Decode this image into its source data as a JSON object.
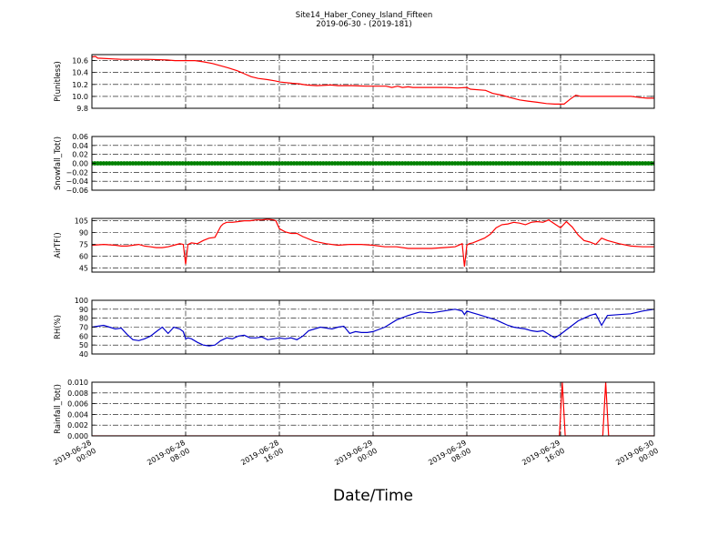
{
  "figure": {
    "title": "Site14_Haber_Coney_Island_Fifteen",
    "subtitle": "2019-06-30 - (2019-181)",
    "xlabel": "Date/Time"
  },
  "chart_data": [
    {
      "type": "line",
      "ylabel": "P(unitless)",
      "ylim": [
        9.8,
        10.7
      ],
      "yticks": [
        9.8,
        10.0,
        10.2,
        10.4,
        10.6
      ],
      "ytick_labels": [
        "9.8",
        "10.0",
        "10.2",
        "10.4",
        "10.6"
      ],
      "grid": true,
      "color": "#ff0000",
      "x": [
        0,
        0.3,
        0.5,
        2.5,
        4.7,
        6.4,
        7.1,
        8.8,
        9.5,
        10.3,
        11.6,
        12.4,
        13.0,
        13.6,
        14.2,
        15.0,
        15.6,
        16.1,
        17.1,
        17.7,
        18.3,
        19.2,
        20.4,
        21.0,
        22.2,
        23.4,
        24.3,
        25.1,
        25.6,
        26.1,
        26.5,
        27.0,
        27.4,
        28.1,
        30.3,
        31.2,
        32.0,
        32.3,
        33.6,
        34.2,
        35.0,
        35.7,
        36.5,
        37.2,
        38.0,
        38.8,
        39.5,
        40.3,
        40.8,
        41.3,
        41.7,
        42.5,
        44.2,
        46.0,
        46.8,
        47.4,
        48.0
      ],
      "y": [
        10.66,
        10.67,
        10.64,
        10.62,
        10.62,
        10.61,
        10.6,
        10.6,
        10.58,
        10.55,
        10.48,
        10.43,
        10.38,
        10.33,
        10.3,
        10.28,
        10.26,
        10.24,
        10.22,
        10.21,
        10.19,
        10.18,
        10.19,
        10.18,
        10.18,
        10.17,
        10.17,
        10.17,
        10.15,
        10.17,
        10.15,
        10.16,
        10.15,
        10.15,
        10.15,
        10.14,
        10.15,
        10.12,
        10.1,
        10.05,
        10.02,
        9.98,
        9.94,
        9.92,
        9.9,
        9.88,
        9.87,
        9.87,
        9.95,
        10.02,
        10.0,
        10.0,
        10.0,
        10.0,
        9.98,
        9.97,
        9.97
      ]
    },
    {
      "type": "scatter",
      "ylabel": "Snowfall_Tot()",
      "ylim": [
        -0.06,
        0.06
      ],
      "yticks": [
        -0.06,
        -0.04,
        -0.02,
        0.0,
        0.02,
        0.04,
        0.06
      ],
      "ytick_labels": [
        "−0.06",
        "−0.04",
        "−0.02",
        "0.00",
        "0.02",
        "0.04",
        "0.06"
      ],
      "grid": true,
      "color": "#008000",
      "x_range": [
        0,
        48
      ],
      "point_interval": 0.25,
      "value": 0.0
    },
    {
      "type": "line",
      "ylabel": "AirTF()",
      "ylim": [
        40,
        108
      ],
      "yticks": [
        45,
        60,
        75,
        90,
        105
      ],
      "ytick_labels": [
        "45",
        "60",
        "75",
        "90",
        "105"
      ],
      "grid": true,
      "color": "#ff0000",
      "x": [
        0,
        1,
        2,
        2.5,
        3,
        3.5,
        4,
        4.5,
        5,
        5.5,
        6,
        6.5,
        7,
        7.5,
        7.8,
        8.0,
        8.2,
        8.5,
        9,
        9.5,
        10,
        10.5,
        11,
        11.2,
        11.5,
        12,
        12.5,
        13,
        13.5,
        14,
        14.5,
        15,
        15.5,
        15.7,
        16,
        16.5,
        17,
        17.5,
        18,
        19,
        20,
        21,
        22,
        23,
        24,
        25,
        26,
        27,
        28,
        29,
        30,
        31,
        31.6,
        31.8,
        32.0,
        32.2,
        32.5,
        33,
        33.5,
        34,
        34.5,
        35,
        35.5,
        36,
        36.5,
        37,
        37.5,
        38,
        38.5,
        39,
        39.5,
        40,
        40.5,
        41,
        41.5,
        42,
        42.5,
        43,
        43.5,
        44,
        45,
        46,
        47,
        48
      ],
      "y": [
        74,
        75,
        74,
        73,
        73,
        74,
        75,
        73,
        72,
        71,
        71,
        72,
        74,
        76,
        75,
        50,
        75,
        77,
        76,
        80,
        83,
        84,
        98,
        101,
        103,
        103,
        104,
        105,
        105,
        106,
        106,
        107,
        106,
        105,
        95,
        91,
        89,
        89,
        85,
        79,
        76,
        74,
        75,
        75,
        74,
        72,
        72,
        70,
        70,
        70,
        71,
        72,
        76,
        47,
        74,
        76,
        77,
        80,
        83,
        88,
        96,
        100,
        101,
        103,
        102,
        100,
        103,
        104,
        103,
        106,
        101,
        96,
        104,
        97,
        87,
        80,
        78,
        75,
        83,
        80,
        76,
        73,
        72,
        72
      ]
    },
    {
      "type": "line",
      "ylabel": "RH(%)",
      "ylim": [
        40,
        100
      ],
      "yticks": [
        40,
        50,
        60,
        70,
        80,
        90,
        100
      ],
      "ytick_labels": [
        "40",
        "50",
        "60",
        "70",
        "80",
        "90",
        "100"
      ],
      "grid": true,
      "color": "#0000cc",
      "x": [
        0,
        0.5,
        1,
        1.5,
        2,
        2.5,
        3,
        3.5,
        4,
        4.5,
        5,
        5.5,
        6,
        6.5,
        7,
        7.5,
        7.8,
        8.0,
        8.2,
        8.5,
        9,
        9.5,
        10,
        10.5,
        11,
        11.5,
        12,
        12.5,
        13,
        13.5,
        14,
        14.5,
        15,
        15.5,
        16,
        16.5,
        17,
        17.5,
        18,
        18.5,
        19,
        19.5,
        20,
        20.5,
        21,
        21.5,
        22,
        22.5,
        23,
        23.5,
        24,
        25,
        26,
        27,
        28,
        29,
        30,
        31,
        31.6,
        31.8,
        32.0,
        32.5,
        33,
        33.5,
        34,
        34.5,
        35,
        35.5,
        36,
        36.5,
        37,
        37.5,
        38,
        38.5,
        39,
        39.5,
        40,
        40.5,
        41,
        41.5,
        42,
        42.5,
        43,
        43.5,
        44,
        45,
        46,
        47,
        48
      ],
      "y": [
        70,
        71,
        72,
        70,
        68,
        69,
        62,
        56,
        55,
        57,
        60,
        65,
        70,
        63,
        70,
        68,
        65,
        57,
        58,
        57,
        53,
        50,
        49,
        50,
        55,
        58,
        57,
        60,
        61,
        58,
        58,
        59,
        56,
        57,
        58,
        57,
        58,
        56,
        60,
        66,
        68,
        70,
        69,
        68,
        70,
        71,
        63,
        65,
        64,
        64,
        65,
        70,
        78,
        83,
        87,
        86,
        88,
        90,
        88,
        84,
        88,
        86,
        84,
        82,
        80,
        78,
        75,
        72,
        70,
        69,
        68,
        66,
        65,
        66,
        62,
        58,
        62,
        67,
        72,
        77,
        80,
        83,
        85,
        72,
        83,
        84,
        85,
        88,
        90
      ]
    },
    {
      "type": "line",
      "ylabel": "Rainfall_Tot()",
      "ylim": [
        0.0,
        0.01
      ],
      "yticks": [
        0.0,
        0.002,
        0.004,
        0.006,
        0.008,
        0.01
      ],
      "ytick_labels": [
        "0.000",
        "0.002",
        "0.004",
        "0.006",
        "0.008",
        "0.010"
      ],
      "grid": true,
      "color": "#ff0000",
      "x": [
        0,
        39.9,
        40.15,
        40.4,
        43.6,
        43.85,
        44.1,
        48
      ],
      "y": [
        0,
        0,
        0.01,
        0,
        0,
        0.01,
        0,
        0
      ]
    }
  ],
  "x_axis": {
    "xlim": [
      0,
      48
    ],
    "ticks": [
      0,
      8,
      16,
      24,
      32,
      40,
      48
    ],
    "tick_labels": [
      [
        "2019-06-28",
        "00:00"
      ],
      [
        "2019-06-28",
        "08:00"
      ],
      [
        "2019-06-28",
        "16:00"
      ],
      [
        "2019-06-29",
        "00:00"
      ],
      [
        "2019-06-29",
        "08:00"
      ],
      [
        "2019-06-29",
        "16:00"
      ],
      [
        "2019-06-30",
        "00:00"
      ]
    ]
  }
}
